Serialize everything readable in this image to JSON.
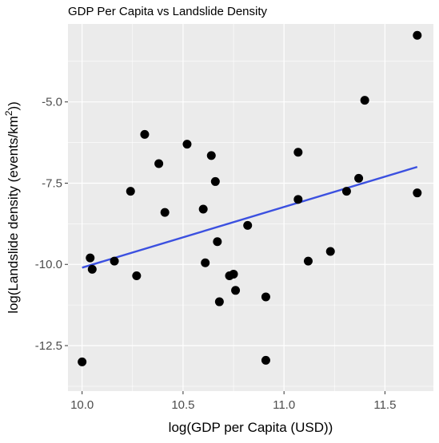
{
  "chart_data": {
    "type": "scatter",
    "title": "GDP Per Capita vs Landslide Density",
    "xlabel": "log(GDP per Capita (USD))",
    "ylabel_main": "log(Landslide density (events/km",
    "ylabel_sup": "2",
    "ylabel_tail": "))",
    "xlim": [
      9.93,
      11.74
    ],
    "ylim": [
      -13.9,
      -2.6
    ],
    "x_ticks": [
      10.0,
      10.5,
      11.0,
      11.5
    ],
    "x_tick_labels": [
      "10.0",
      "10.5",
      "11.0",
      "11.5"
    ],
    "y_ticks": [
      -12.5,
      -10.0,
      -7.5,
      -5.0
    ],
    "y_tick_labels": [
      "-12.5",
      "-10.0",
      "-7.5",
      "-5.0"
    ],
    "grid": true,
    "points": [
      {
        "x": 10.0,
        "y": -13.0
      },
      {
        "x": 10.04,
        "y": -9.8
      },
      {
        "x": 10.05,
        "y": -10.15
      },
      {
        "x": 10.16,
        "y": -9.9
      },
      {
        "x": 10.24,
        "y": -7.75
      },
      {
        "x": 10.27,
        "y": -10.35
      },
      {
        "x": 10.31,
        "y": -6.0
      },
      {
        "x": 10.38,
        "y": -6.9
      },
      {
        "x": 10.41,
        "y": -8.4
      },
      {
        "x": 10.52,
        "y": -6.3
      },
      {
        "x": 10.6,
        "y": -8.3
      },
      {
        "x": 10.61,
        "y": -9.95
      },
      {
        "x": 10.64,
        "y": -6.65
      },
      {
        "x": 10.66,
        "y": -7.45
      },
      {
        "x": 10.67,
        "y": -9.3
      },
      {
        "x": 10.68,
        "y": -11.15
      },
      {
        "x": 10.73,
        "y": -10.35
      },
      {
        "x": 10.75,
        "y": -10.3
      },
      {
        "x": 10.76,
        "y": -10.8
      },
      {
        "x": 10.82,
        "y": -8.8
      },
      {
        "x": 10.91,
        "y": -12.95
      },
      {
        "x": 10.91,
        "y": -11.0
      },
      {
        "x": 11.07,
        "y": -6.55
      },
      {
        "x": 11.07,
        "y": -8.0
      },
      {
        "x": 11.12,
        "y": -9.9
      },
      {
        "x": 11.23,
        "y": -9.6
      },
      {
        "x": 11.31,
        "y": -7.75
      },
      {
        "x": 11.37,
        "y": -7.35
      },
      {
        "x": 11.4,
        "y": -4.95
      },
      {
        "x": 11.66,
        "y": -2.95
      },
      {
        "x": 11.66,
        "y": -7.8
      }
    ],
    "trend_line": {
      "x": [
        10.0,
        11.66
      ],
      "y": [
        -10.1,
        -7.0
      ]
    },
    "colors": {
      "panel_bg": "#ebebeb",
      "grid_major": "#ffffff",
      "point": "#000000",
      "trend": "#3b50e0",
      "text": "#000000",
      "tick_text": "#4d4d4d"
    }
  }
}
